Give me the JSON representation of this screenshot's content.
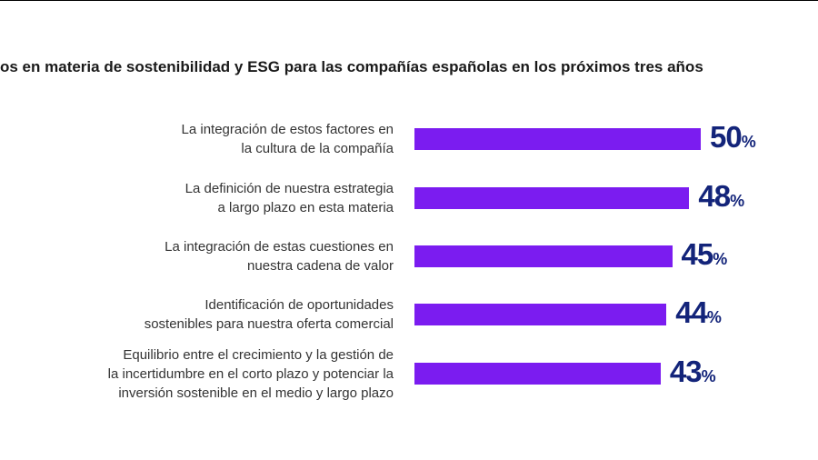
{
  "chart_data": {
    "type": "bar",
    "orientation": "horizontal",
    "title": "os en materia de sostenibilidad y ESG para las compañías españolas en los próximos tres años",
    "categories": [
      "La integración de estos factores en\nla cultura de la compañía",
      "La definición de nuestra estrategia\na largo plazo en esta materia",
      "La integración de estas cuestiones en\nnuestra cadena de valor",
      "Identificación de oportunidades\nsostenibles para nuestra oferta comercial",
      "Equilibrio entre el crecimiento y la gestión de\nla incertidumbre en el corto plazo y potenciar la\ninversión sostenible en el medio y largo plazo"
    ],
    "values": [
      50,
      48,
      45,
      44,
      43
    ],
    "value_labels": [
      "50",
      "48",
      "45",
      "44",
      "43"
    ],
    "value_suffix": "%",
    "xlim": [
      0,
      100
    ],
    "grid": false,
    "legend": "none",
    "colors": {
      "bar": "#7b1cf0",
      "value_text": "#13247a",
      "label_text": "#333333"
    }
  }
}
